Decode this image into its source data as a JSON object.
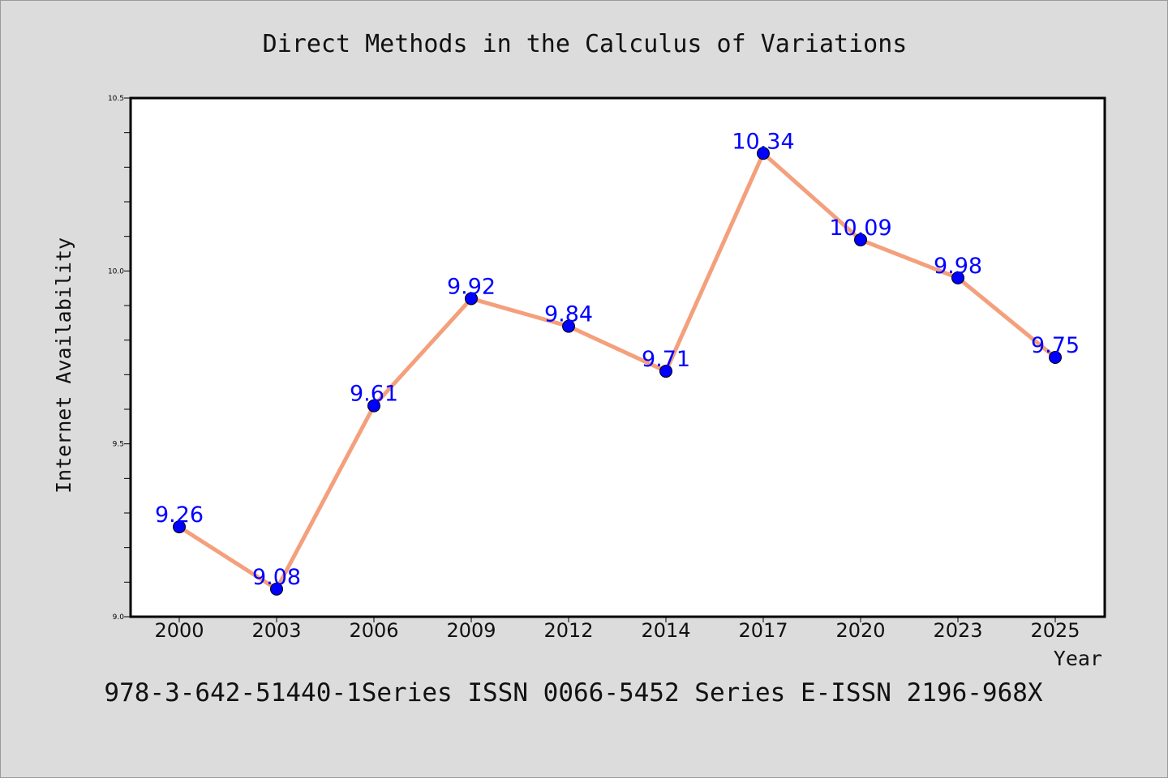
{
  "chart_data": {
    "type": "line",
    "title": "Direct Methods in the Calculus of Variations",
    "xlabel": "Year",
    "ylabel": "Internet Availability",
    "categories": [
      "2000",
      "2003",
      "2006",
      "2009",
      "2012",
      "2014",
      "2017",
      "2020",
      "2023",
      "2025"
    ],
    "values": [
      9.26,
      9.08,
      9.61,
      9.92,
      9.84,
      9.71,
      10.34,
      10.09,
      9.98,
      9.75
    ],
    "data_labels": [
      "9.26",
      "9.08",
      "9.61",
      "9.92",
      "9.84",
      "9.71",
      "10.34",
      "10.09",
      "9.98",
      "9.75"
    ],
    "ylim": [
      9.0,
      10.5
    ],
    "yticks": [
      9.0,
      9.5,
      10.0,
      10.5
    ],
    "ytick_labels": [
      "9.0",
      "9.5",
      "10.0",
      "10.5"
    ],
    "y_minor_step": 0.1,
    "grid": false,
    "line_color": "#f4a07c",
    "marker_color": "#0000ff",
    "label_color": "#0000ff",
    "footer": "978-3-642-51440-1Series ISSN 0066-5452 Series E-ISSN 2196-968X"
  }
}
